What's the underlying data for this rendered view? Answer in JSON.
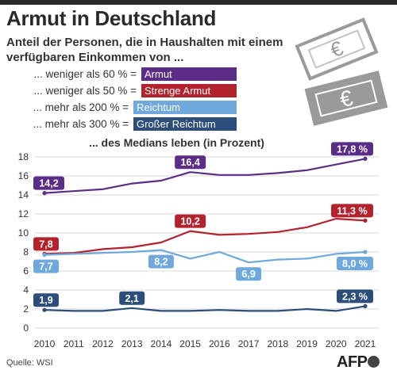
{
  "header": {
    "title": "Armut in Deutschland",
    "subtitle": "Anteil der Personen, die in Haushalten mit einem verfügbaren Einkommen von ..."
  },
  "legend": [
    {
      "text": "... weniger als 60 % =",
      "badge": "Armut",
      "color": "#5b2d86"
    },
    {
      "text": "... weniger als 50 % =",
      "badge": "Strenge Armut",
      "color": "#b3232e"
    },
    {
      "text": "... mehr als 200 % =",
      "badge": "Reichtum",
      "color": "#6fa8dc"
    },
    {
      "text": "... mehr als 300 % =",
      "badge": "Großer Reichtum",
      "color": "#2d4e7a"
    }
  ],
  "medians_text": "... des Medians leben (in Prozent)",
  "footer": {
    "source": "Quelle: WSI",
    "logo": "AFP"
  },
  "icons": [
    "banknote-euro-icon",
    "banknote-euro-icon"
  ],
  "chart_data": {
    "type": "line",
    "x": [
      2010,
      2011,
      2012,
      2013,
      2014,
      2015,
      2016,
      2017,
      2018,
      2019,
      2020,
      2021
    ],
    "ylim": [
      0,
      18
    ],
    "yticks": [
      0,
      2,
      4,
      6,
      8,
      10,
      12,
      14,
      16,
      18
    ],
    "grid": true,
    "series": [
      {
        "name": "Armut",
        "color": "#5b2d86",
        "values": [
          14.2,
          14.4,
          14.6,
          15.2,
          15.5,
          16.4,
          16.1,
          16.1,
          16.3,
          16.6,
          17.2,
          17.8
        ]
      },
      {
        "name": "Strenge Armut",
        "color": "#b3232e",
        "values": [
          7.8,
          7.9,
          8.3,
          8.5,
          9.0,
          10.2,
          9.8,
          9.9,
          10.1,
          10.6,
          11.5,
          11.3
        ]
      },
      {
        "name": "Reichtum",
        "color": "#6fa8dc",
        "values": [
          7.7,
          7.8,
          7.9,
          8.0,
          8.2,
          7.3,
          8.0,
          6.9,
          7.2,
          7.3,
          7.8,
          8.0
        ]
      },
      {
        "name": "Großer Reichtum",
        "color": "#2d4e7a",
        "values": [
          1.9,
          1.8,
          1.8,
          2.1,
          1.8,
          1.8,
          1.9,
          1.8,
          1.8,
          2.0,
          1.8,
          2.3
        ]
      }
    ],
    "data_labels": [
      {
        "series": 0,
        "index": 0,
        "text": "14,2"
      },
      {
        "series": 0,
        "index": 5,
        "text": "16,4"
      },
      {
        "series": 0,
        "index": 11,
        "text": "17,8 %"
      },
      {
        "series": 1,
        "index": 0,
        "text": "7,8"
      },
      {
        "series": 1,
        "index": 5,
        "text": "10,2"
      },
      {
        "series": 1,
        "index": 11,
        "text": "11,3 %"
      },
      {
        "series": 2,
        "index": 0,
        "text": "7,7"
      },
      {
        "series": 2,
        "index": 4,
        "text": "8,2"
      },
      {
        "series": 2,
        "index": 7,
        "text": "6,9"
      },
      {
        "series": 2,
        "index": 11,
        "text": "8,0 %"
      },
      {
        "series": 3,
        "index": 0,
        "text": "1,9"
      },
      {
        "series": 3,
        "index": 3,
        "text": "2,1"
      },
      {
        "series": 3,
        "index": 11,
        "text": "2,3 %"
      }
    ]
  }
}
